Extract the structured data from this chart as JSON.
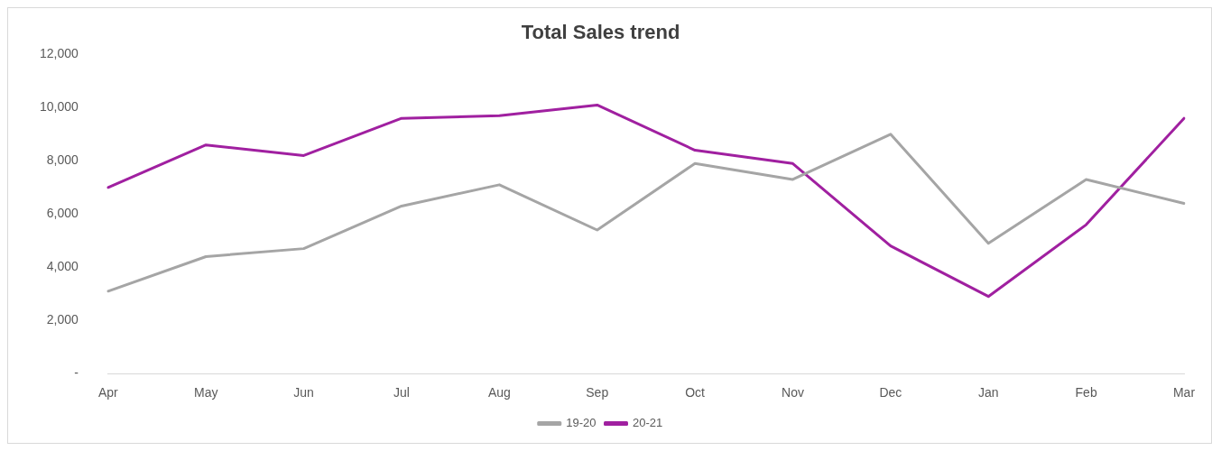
{
  "chart_data": {
    "type": "line",
    "title": "Total Sales trend",
    "categories": [
      "Apr",
      "May",
      "Jun",
      "Jul",
      "Aug",
      "Sep",
      "Oct",
      "Nov",
      "Dec",
      "Jan",
      "Feb",
      "Mar"
    ],
    "series": [
      {
        "name": "19-20",
        "color": "#a5a5a5",
        "values": [
          3100,
          4400,
          4700,
          6300,
          7100,
          5400,
          7900,
          7300,
          9000,
          4900,
          7300,
          6400
        ]
      },
      {
        "name": "20-21",
        "color": "#a020a0",
        "values": [
          7000,
          8600,
          8200,
          9600,
          9700,
          10100,
          8400,
          7900,
          4800,
          2900,
          5600,
          9600
        ]
      }
    ],
    "ylim": [
      0,
      12000
    ],
    "yticks": [
      {
        "value": 0,
        "label": "-"
      },
      {
        "value": 2000,
        "label": "2,000"
      },
      {
        "value": 4000,
        "label": "4,000"
      },
      {
        "value": 6000,
        "label": "6,000"
      },
      {
        "value": 8000,
        "label": "8,000"
      },
      {
        "value": 10000,
        "label": "10,000"
      },
      {
        "value": 12000,
        "label": "12,000"
      }
    ],
    "grid": false,
    "legend": "bottom",
    "marker": "none",
    "line_style": "solid"
  }
}
